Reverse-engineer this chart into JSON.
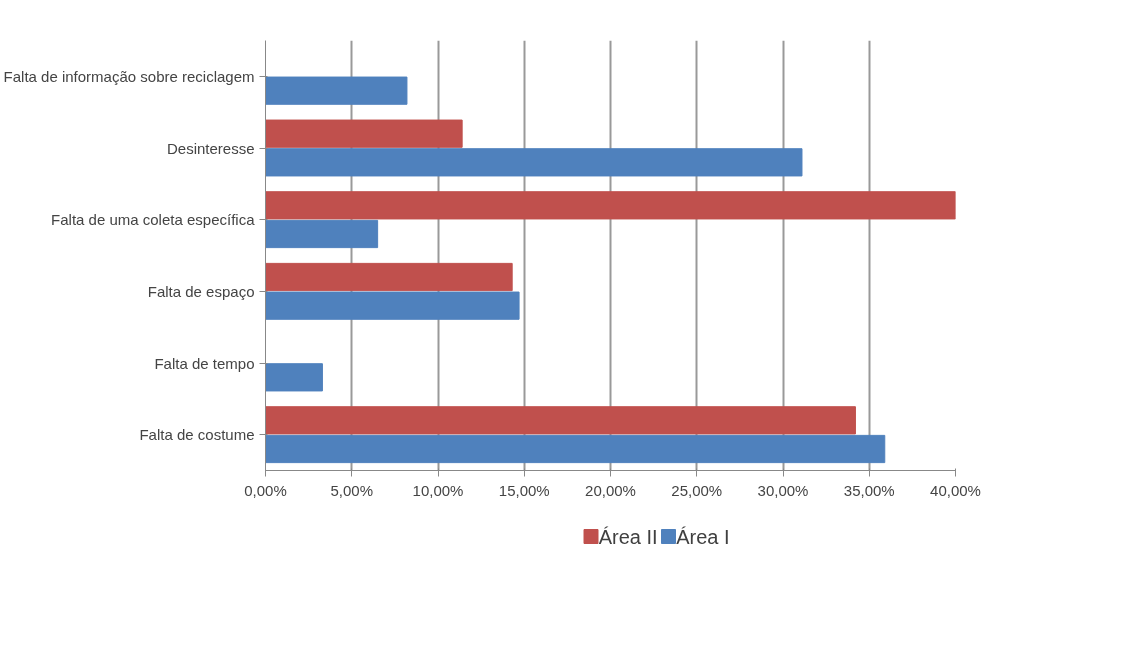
{
  "chart_data": {
    "type": "bar",
    "orientation": "horizontal",
    "categories": [
      "Falta de informação sobre reciclagem",
      "Desinteresse",
      "Falta de uma coleta específica",
      "Falta de espaço",
      "Falta de tempo",
      "Falta de costume"
    ],
    "series": [
      {
        "name": "Área II",
        "color": "#c0504d",
        "values": [
          0,
          11.4,
          40,
          14.3,
          0,
          34.2
        ]
      },
      {
        "name": "Área I",
        "color": "#4f81bd",
        "values": [
          8.2,
          31.1,
          6.5,
          14.7,
          3.3,
          35.9
        ]
      }
    ],
    "xlim": [
      0,
      40
    ],
    "xticks": [
      {
        "value": 0,
        "label": "0,00%"
      },
      {
        "value": 5,
        "label": "5,00%"
      },
      {
        "value": 10,
        "label": "10,00%"
      },
      {
        "value": 15,
        "label": "15,00%"
      },
      {
        "value": 20,
        "label": "20,00%"
      },
      {
        "value": 25,
        "label": "25,00%"
      },
      {
        "value": 30,
        "label": "30,00%"
      },
      {
        "value": 35,
        "label": "35,00%"
      },
      {
        "value": 40,
        "label": "40,00%"
      }
    ],
    "grid": "x",
    "legend": "bottom"
  }
}
